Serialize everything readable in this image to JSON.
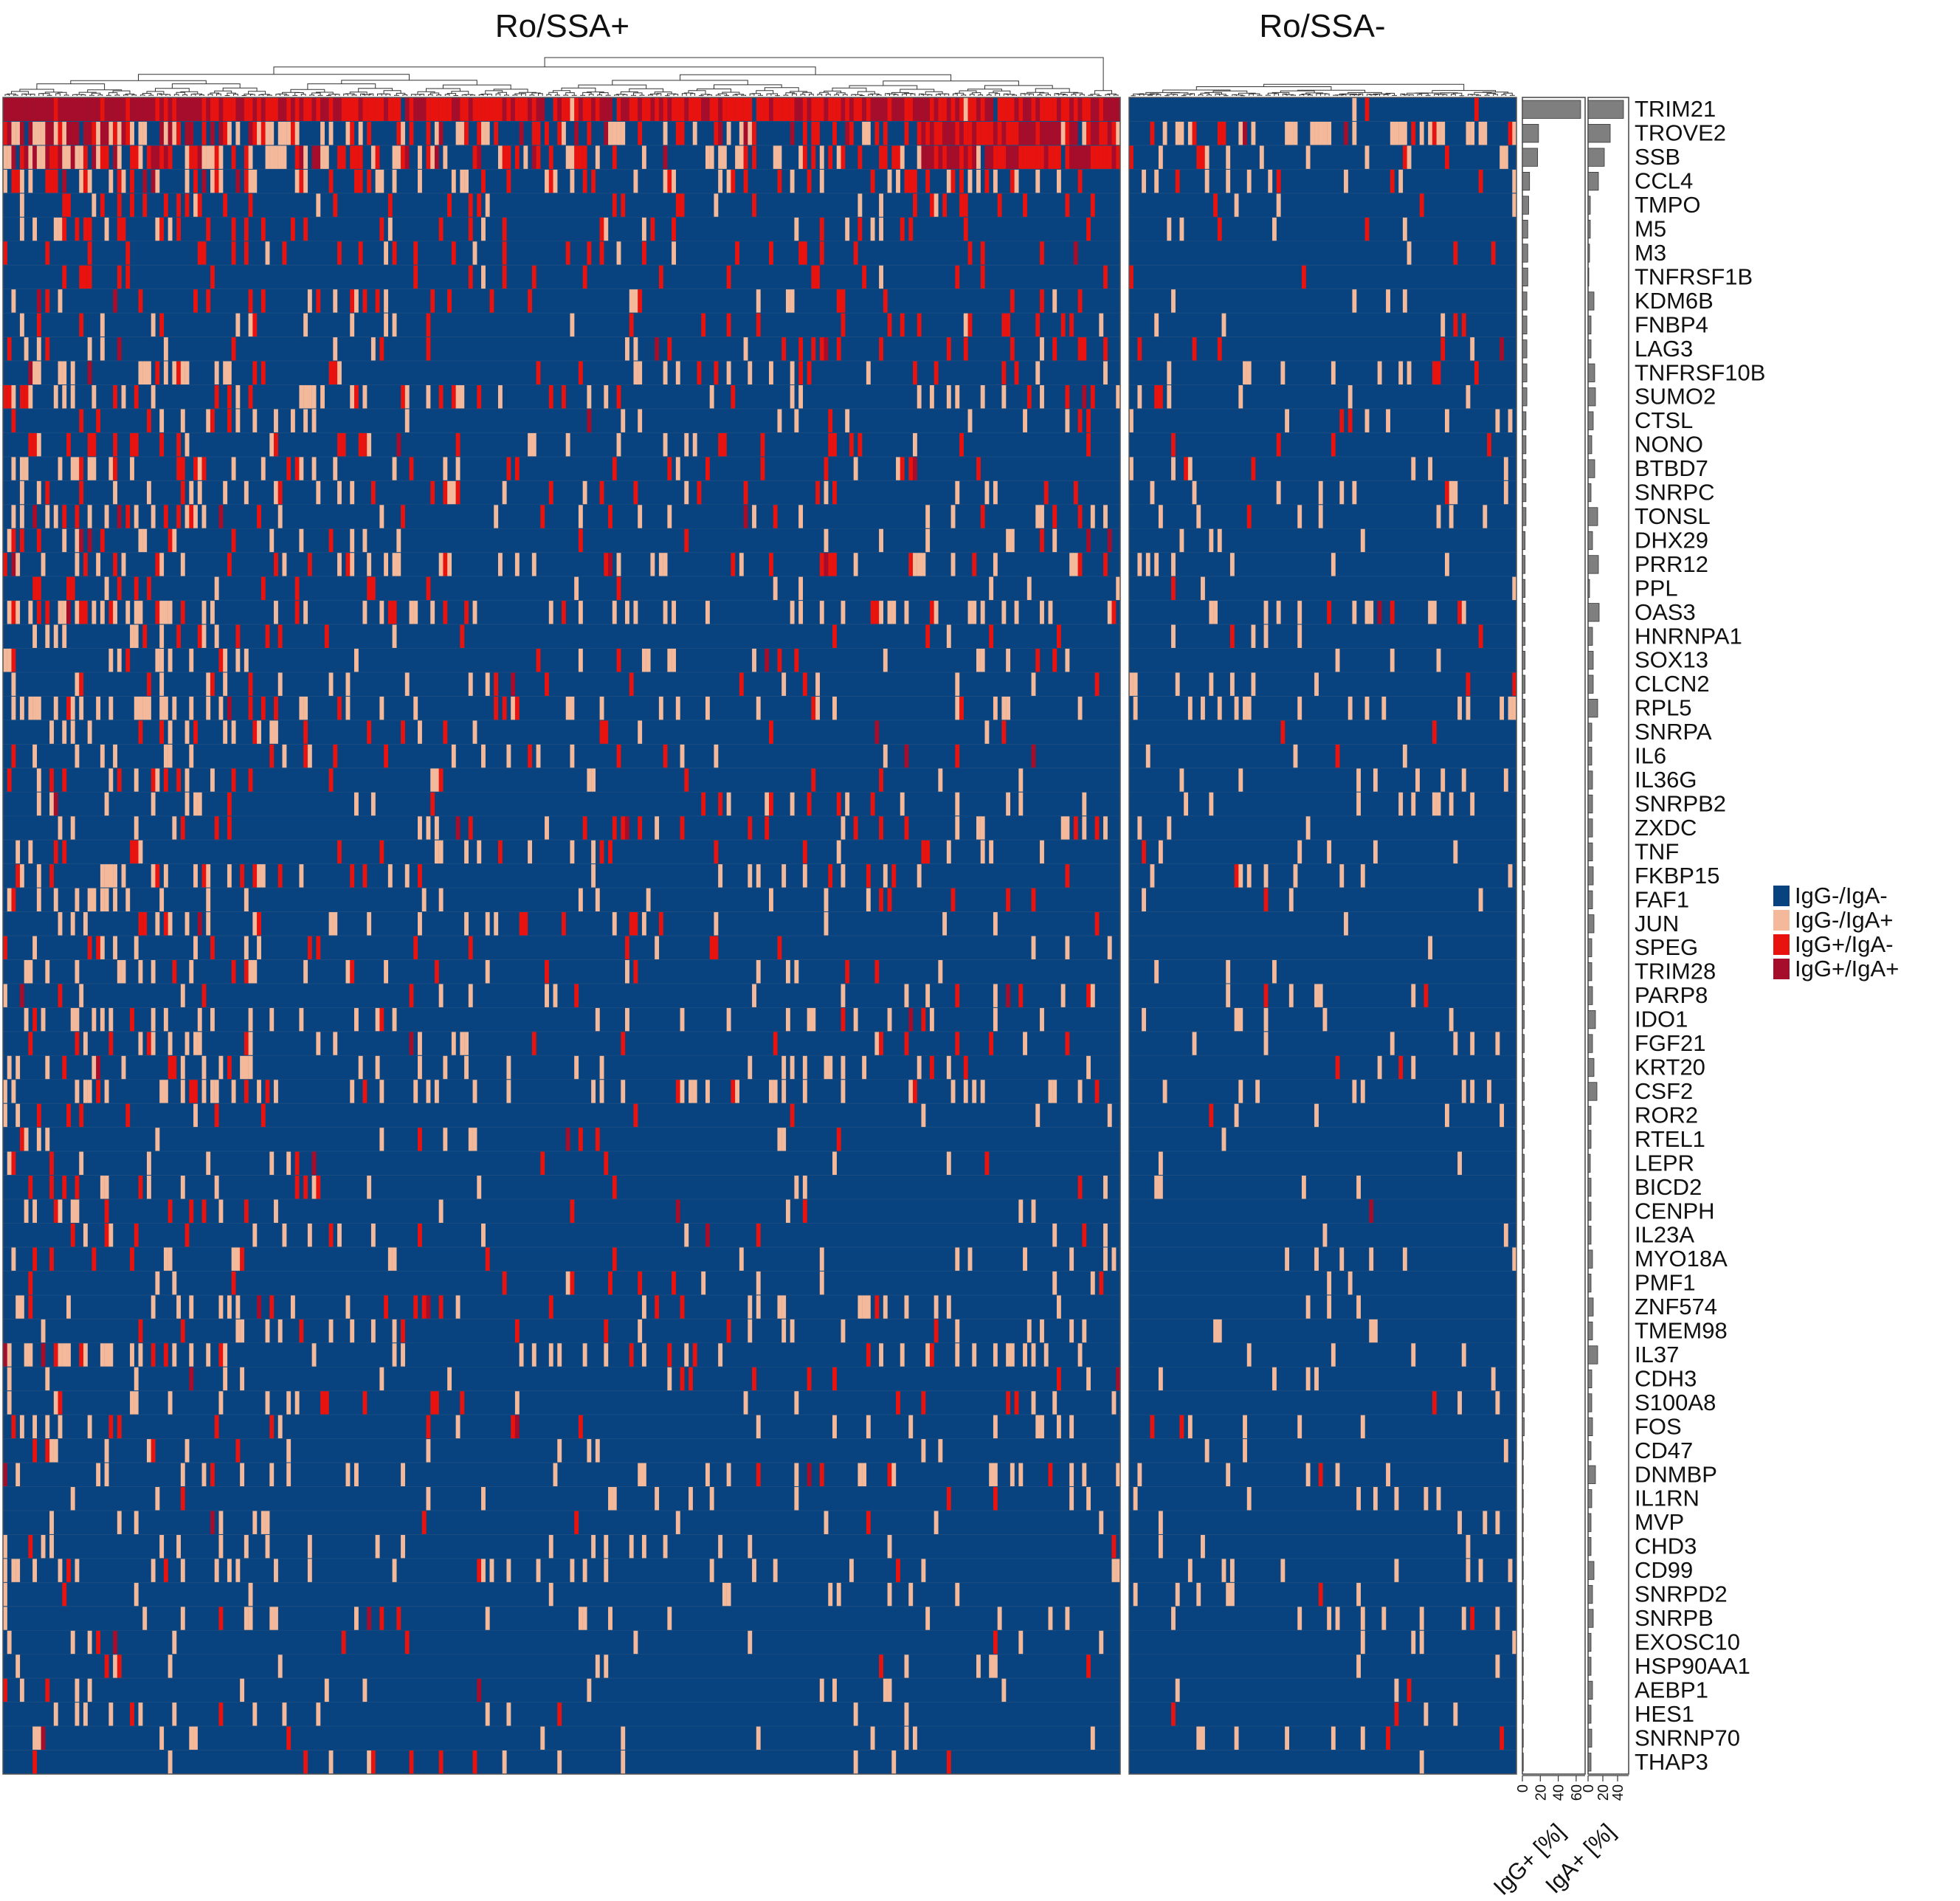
{
  "chart_data": {
    "type": "heatmap",
    "groups": [
      {
        "label": "Ro/SSA+",
        "columns": 264
      },
      {
        "label": "Ro/SSA-",
        "columns": 92
      }
    ],
    "genes": [
      "TRIM21",
      "TROVE2",
      "SSB",
      "CCL4",
      "TMPO",
      "M5",
      "M3",
      "TNFRSF1B",
      "KDM6B",
      "FNBP4",
      "LAG3",
      "TNFRSF10B",
      "SUMO2",
      "CTSL",
      "NONO",
      "BTBD7",
      "SNRPC",
      "TONSL",
      "DHX29",
      "PRR12",
      "PPL",
      "OAS3",
      "HNRNPA1",
      "SOX13",
      "CLCN2",
      "RPL5",
      "SNRPA",
      "IL6",
      "IL36G",
      "SNRPB2",
      "ZXDC",
      "TNF",
      "FKBP15",
      "FAF1",
      "JUN",
      "SPEG",
      "TRIM28",
      "PARP8",
      "IDO1",
      "FGF21",
      "KRT20",
      "CSF2",
      "ROR2",
      "RTEL1",
      "LEPR",
      "BICD2",
      "CENPH",
      "IL23A",
      "MYO18A",
      "PMF1",
      "ZNF574",
      "TMEM98",
      "IL37",
      "CDH3",
      "S100A8",
      "FOS",
      "CD47",
      "DNMBP",
      "IL1RN",
      "MVP",
      "CHD3",
      "CD99",
      "SNRPD2",
      "SNRPB",
      "EXOSC10",
      "HSP90AA1",
      "AEBP1",
      "HES1",
      "SNRNP70",
      "THAP3"
    ],
    "legend": [
      {
        "label": "IgG-/IgA-",
        "color": "#08437f"
      },
      {
        "label": "IgG-/IgA+",
        "color": "#f4b99a"
      },
      {
        "label": "IgG+/IgA-",
        "color": "#e8120e"
      },
      {
        "label": "IgG+/IgA+",
        "color": "#a50d2b"
      }
    ],
    "igg_positive_pct": [
      65,
      18,
      17,
      8,
      7,
      6,
      6,
      6,
      5,
      5,
      5,
      5,
      5,
      4,
      4,
      4,
      4,
      4,
      3,
      3,
      3,
      3,
      3,
      3,
      3,
      3,
      3,
      3,
      3,
      3,
      3,
      3,
      3,
      2,
      2,
      2,
      2,
      2,
      2,
      2,
      2,
      2,
      2,
      2,
      2,
      2,
      2,
      2,
      2,
      2,
      2,
      2,
      2,
      2,
      2,
      2,
      1,
      1,
      1,
      1,
      1,
      1,
      1,
      1,
      1,
      1,
      1,
      1,
      1,
      1
    ],
    "iga_positive_pct": [
      48,
      30,
      22,
      14,
      3,
      3,
      2,
      1,
      8,
      4,
      4,
      9,
      10,
      7,
      5,
      9,
      4,
      13,
      6,
      14,
      2,
      15,
      6,
      7,
      7,
      13,
      5,
      5,
      6,
      6,
      6,
      6,
      7,
      6,
      8,
      5,
      5,
      6,
      10,
      6,
      8,
      12,
      4,
      4,
      3,
      4,
      4,
      4,
      6,
      4,
      7,
      6,
      13,
      5,
      5,
      6,
      4,
      10,
      5,
      4,
      4,
      8,
      6,
      7,
      4,
      4,
      6,
      4,
      5,
      4
    ],
    "bar_axes": [
      {
        "title": "IgG+ [%]",
        "ticks": [
          0,
          20,
          40,
          60
        ],
        "range": [
          0,
          70
        ]
      },
      {
        "title": "IgA+ [%]",
        "ticks": [
          0,
          20,
          40
        ],
        "range": [
          0,
          55
        ]
      }
    ],
    "pattern_rule": "cell states are sampled per gene, weighted toward the Ro/SSA+ group and the top-ranked genes"
  }
}
